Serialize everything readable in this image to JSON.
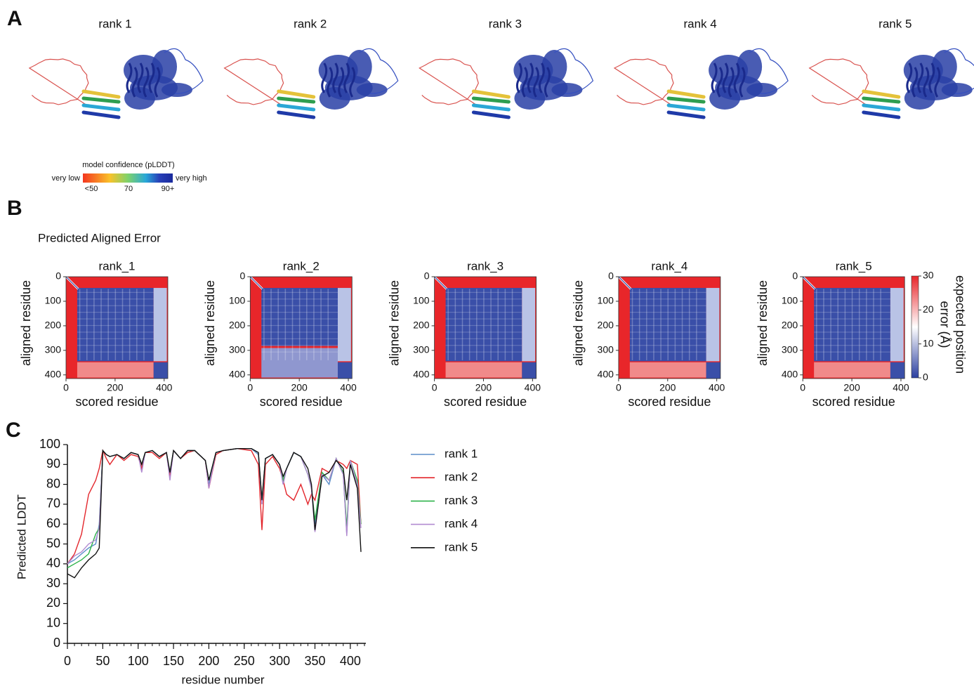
{
  "panel_labels": [
    "A",
    "B",
    "C"
  ],
  "structures": {
    "titles": [
      "rank 1",
      "rank 2",
      "rank 3",
      "rank 4",
      "rank 5"
    ],
    "confidence_legend": {
      "title": "model confidence (pLDDT)",
      "low": "very low",
      "high": "very high",
      "ticks": [
        "<50",
        "70",
        "90+"
      ]
    }
  },
  "pae_title": "Predicted Aligned Error",
  "pae_colorbar": {
    "label": [
      "expected position",
      "error (Å)"
    ],
    "lim": [
      0,
      30
    ],
    "ticks": [
      0,
      10,
      20,
      30
    ]
  },
  "chart_data": [
    {
      "type": "heatmap",
      "title": "rank_1",
      "xlabel": "scored residue",
      "ylabel": "aligned residue",
      "xlim": [
        0,
        415
      ],
      "ylim": [
        0,
        415
      ],
      "xticks": [
        0,
        200,
        400
      ],
      "yticks": [
        0,
        100,
        200,
        300,
        400
      ]
    },
    {
      "type": "heatmap",
      "title": "rank_2",
      "xlabel": "scored residue",
      "ylabel": "aligned residue",
      "xlim": [
        0,
        415
      ],
      "ylim": [
        0,
        415
      ],
      "xticks": [
        0,
        200,
        400
      ],
      "yticks": [
        0,
        100,
        200,
        300,
        400
      ]
    },
    {
      "type": "heatmap",
      "title": "rank_3",
      "xlabel": "scored residue",
      "ylabel": "aligned residue",
      "xlim": [
        0,
        415
      ],
      "ylim": [
        0,
        415
      ],
      "xticks": [
        0,
        200,
        400
      ],
      "yticks": [
        0,
        100,
        200,
        300,
        400
      ]
    },
    {
      "type": "heatmap",
      "title": "rank_4",
      "xlabel": "scored residue",
      "ylabel": "aligned residue",
      "xlim": [
        0,
        415
      ],
      "ylim": [
        0,
        415
      ],
      "xticks": [
        0,
        200,
        400
      ],
      "yticks": [
        0,
        100,
        200,
        300,
        400
      ]
    },
    {
      "type": "heatmap",
      "title": "rank_5",
      "xlabel": "scored residue",
      "ylabel": "aligned residue",
      "xlim": [
        0,
        415
      ],
      "ylim": [
        0,
        415
      ],
      "xticks": [
        0,
        200,
        400
      ],
      "yticks": [
        0,
        100,
        200,
        300,
        400
      ]
    },
    {
      "type": "line",
      "xlabel": "residue number",
      "ylabel": "Predicted LDDT",
      "xlim": [
        0,
        420
      ],
      "ylim": [
        0,
        100
      ],
      "xticks": [
        0,
        50,
        100,
        150,
        200,
        250,
        300,
        350,
        400
      ],
      "yticks": [
        0,
        10,
        20,
        30,
        40,
        50,
        60,
        70,
        80,
        90,
        100
      ],
      "x": [
        0,
        10,
        20,
        30,
        40,
        45,
        50,
        55,
        60,
        70,
        80,
        90,
        100,
        105,
        110,
        120,
        130,
        140,
        145,
        150,
        160,
        170,
        180,
        195,
        200,
        210,
        220,
        240,
        260,
        270,
        275,
        280,
        290,
        300,
        305,
        310,
        320,
        330,
        340,
        345,
        350,
        360,
        370,
        380,
        390,
        395,
        400,
        410,
        415
      ],
      "series": [
        {
          "name": "rank 1",
          "color": "#5b8ec9",
          "values": [
            40,
            42,
            45,
            48,
            50,
            60,
            97,
            95,
            94,
            95,
            93,
            96,
            95,
            90,
            96,
            97,
            94,
            96,
            85,
            97,
            93,
            97,
            97,
            92,
            80,
            96,
            97,
            98,
            98,
            95,
            70,
            93,
            95,
            90,
            80,
            88,
            96,
            94,
            85,
            78,
            60,
            85,
            80,
            93,
            85,
            55,
            92,
            80,
            60
          ]
        },
        {
          "name": "rank 2",
          "color": "#e3262c",
          "values": [
            40,
            45,
            55,
            75,
            82,
            88,
            97,
            93,
            90,
            95,
            92,
            95,
            94,
            88,
            96,
            96,
            93,
            96,
            84,
            97,
            93,
            96,
            97,
            92,
            78,
            95,
            97,
            98,
            97,
            90,
            57,
            90,
            94,
            88,
            82,
            75,
            72,
            80,
            70,
            75,
            72,
            88,
            86,
            92,
            90,
            88,
            92,
            90,
            60
          ]
        },
        {
          "name": "rank 3",
          "color": "#2db34a",
          "values": [
            38,
            40,
            42,
            45,
            55,
            58,
            97,
            95,
            94,
            95,
            93,
            96,
            95,
            90,
            96,
            97,
            94,
            96,
            86,
            97,
            93,
            97,
            97,
            92,
            82,
            96,
            97,
            98,
            98,
            96,
            72,
            93,
            95,
            90,
            82,
            88,
            96,
            94,
            85,
            78,
            62,
            86,
            82,
            93,
            86,
            58,
            92,
            82,
            60
          ]
        },
        {
          "name": "rank 4",
          "color": "#b28bd0",
          "values": [
            40,
            44,
            46,
            50,
            52,
            58,
            97,
            95,
            94,
            95,
            93,
            96,
            95,
            86,
            96,
            97,
            94,
            96,
            82,
            97,
            93,
            97,
            97,
            92,
            78,
            96,
            97,
            98,
            98,
            96,
            70,
            93,
            95,
            90,
            80,
            88,
            96,
            94,
            85,
            78,
            56,
            85,
            82,
            93,
            85,
            54,
            92,
            80,
            58
          ]
        },
        {
          "name": "rank 5",
          "color": "#111111",
          "values": [
            35,
            33,
            38,
            42,
            45,
            48,
            97,
            95,
            94,
            95,
            93,
            96,
            95,
            90,
            96,
            97,
            94,
            96,
            86,
            97,
            93,
            97,
            97,
            92,
            82,
            96,
            97,
            98,
            98,
            96,
            72,
            93,
            95,
            90,
            84,
            88,
            96,
            94,
            88,
            80,
            57,
            84,
            86,
            92,
            88,
            72,
            90,
            78,
            46
          ]
        }
      ]
    }
  ]
}
